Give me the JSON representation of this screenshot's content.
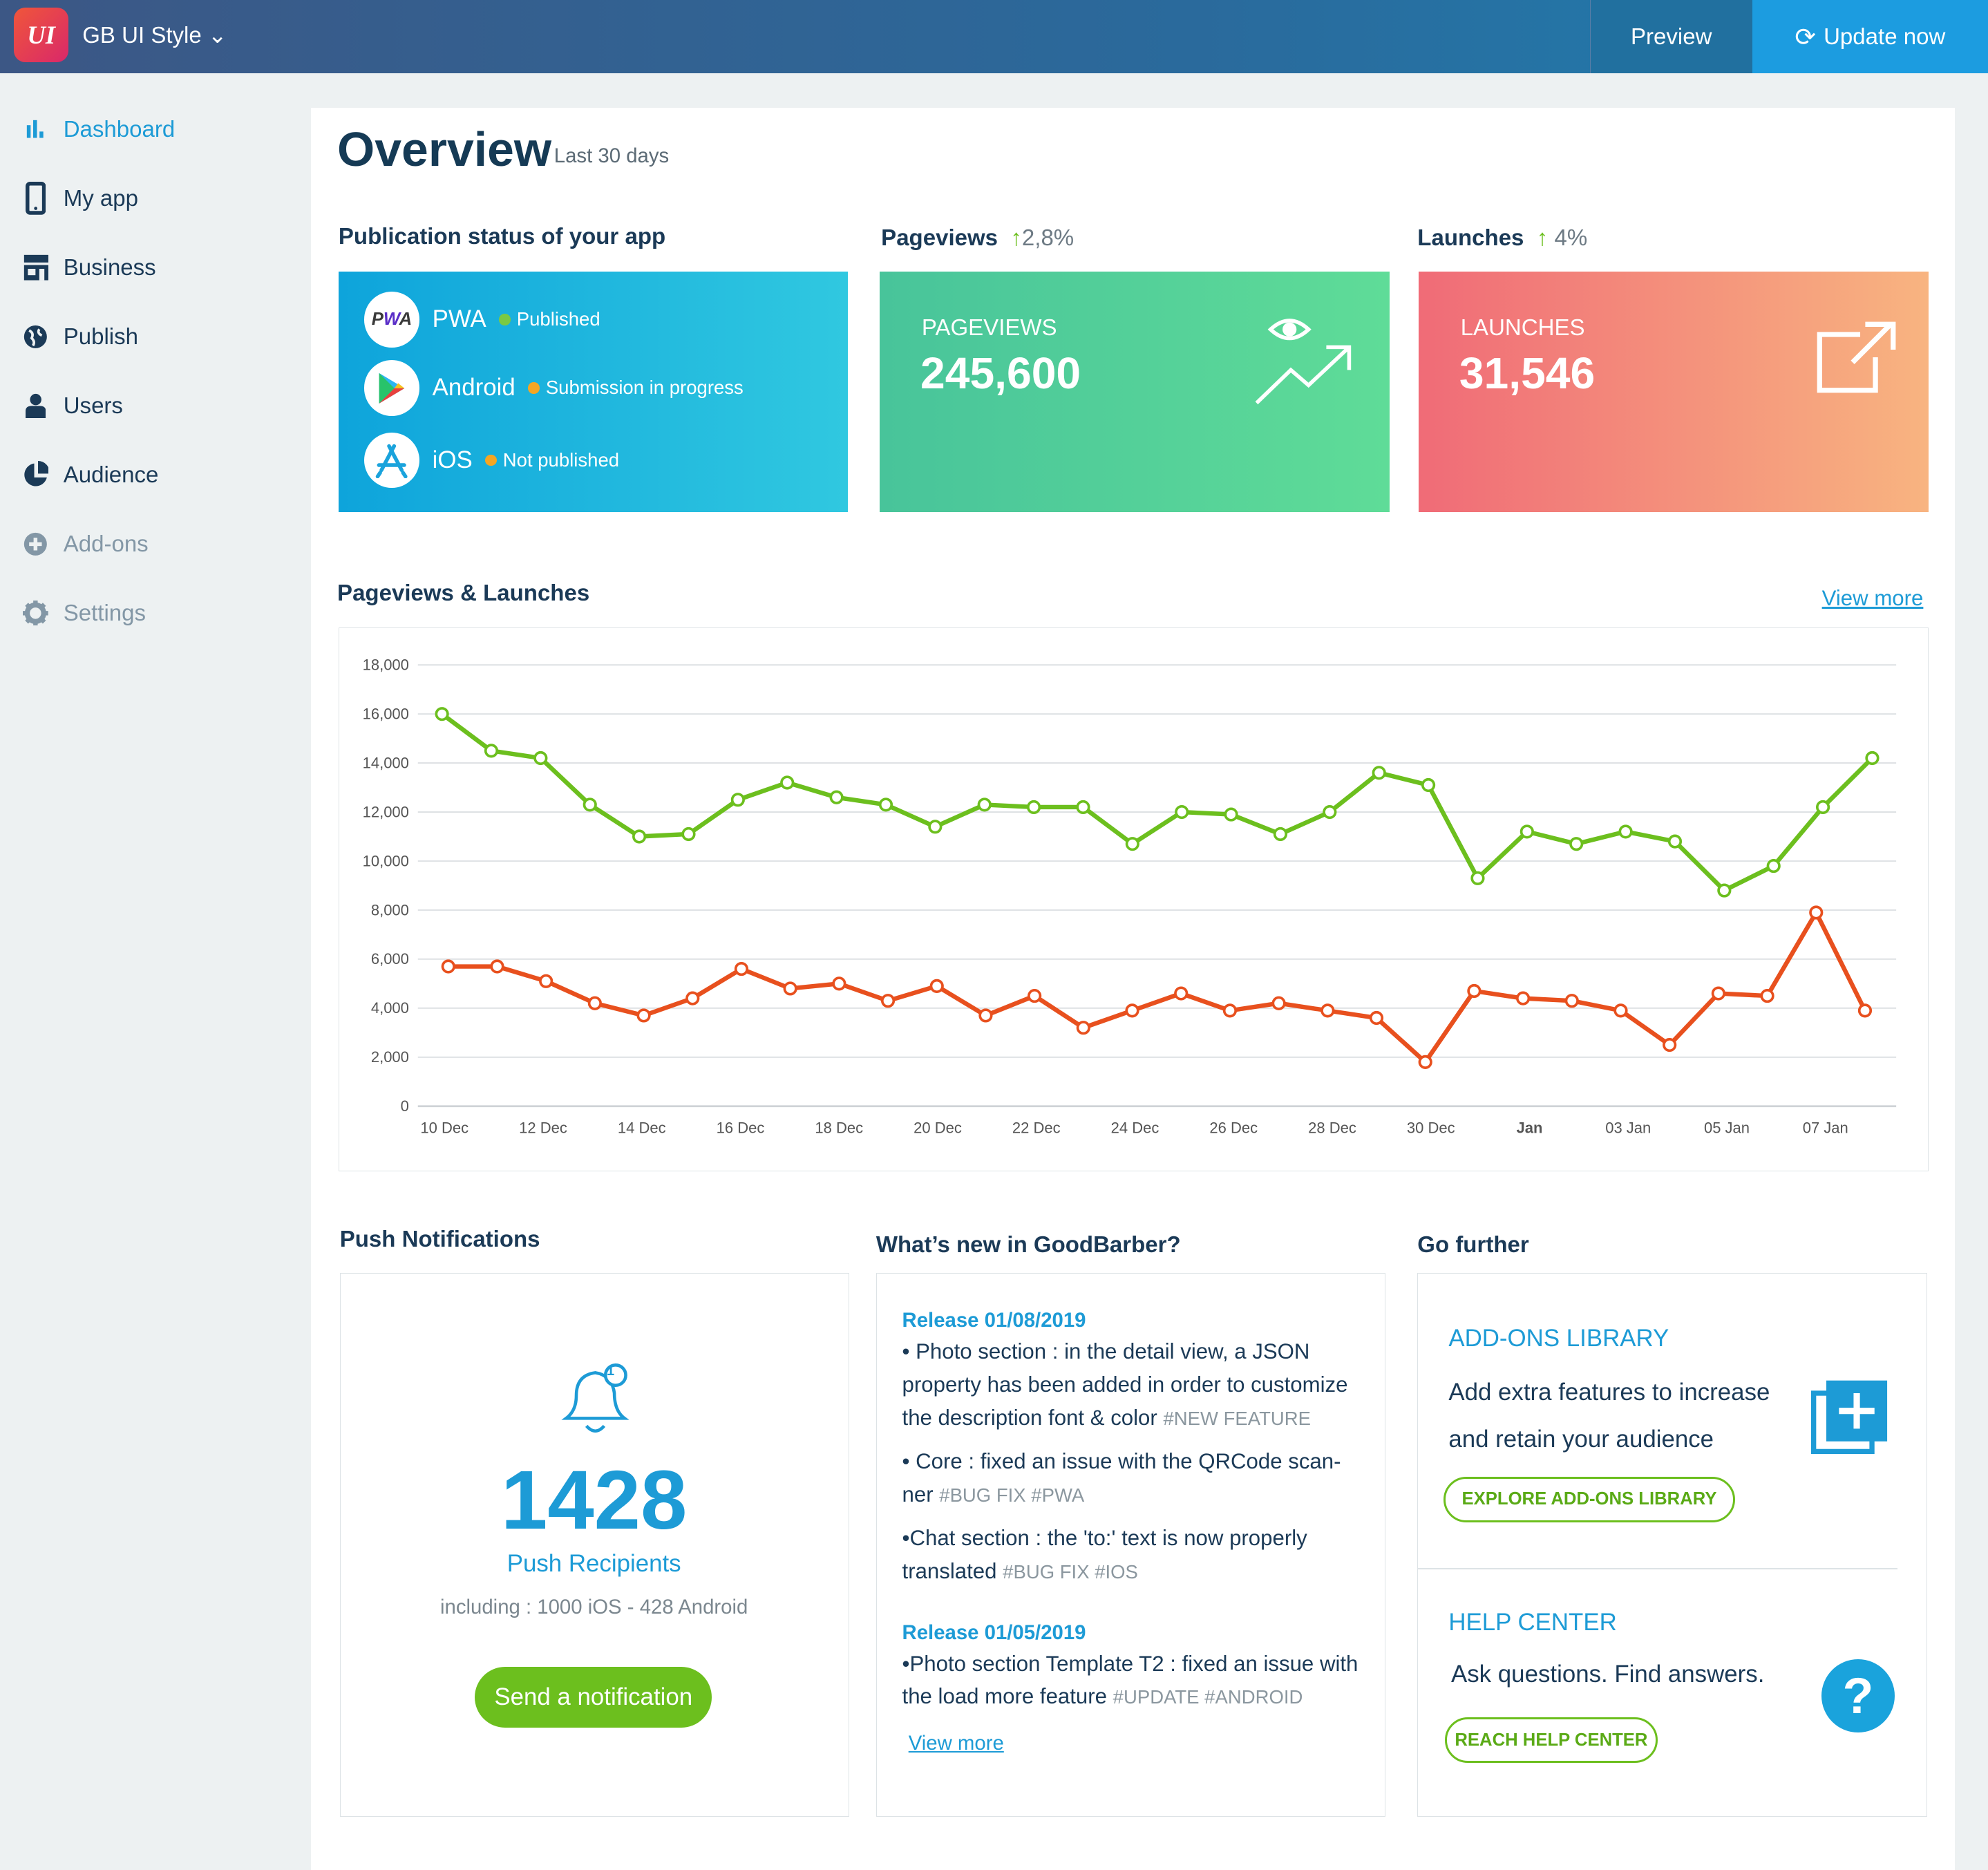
{
  "header": {
    "logo": "UI",
    "app_name": "GB UI Style",
    "preview": "Preview",
    "update": "Update now"
  },
  "sidebar": {
    "items": [
      {
        "label": "Dashboard",
        "icon": "bar-chart-icon",
        "state": "active"
      },
      {
        "label": "My app",
        "icon": "phone-icon"
      },
      {
        "label": "Business",
        "icon": "store-icon"
      },
      {
        "label": "Publish",
        "icon": "globe-icon"
      },
      {
        "label": "Users",
        "icon": "user-icon"
      },
      {
        "label": "Audience",
        "icon": "pie-chart-icon"
      },
      {
        "label": "Add-ons",
        "icon": "plus-circle-icon",
        "state": "dim"
      },
      {
        "label": "Settings",
        "icon": "gear-icon",
        "state": "dim"
      }
    ]
  },
  "overview": {
    "title": "Overview",
    "period": "Last 30 days"
  },
  "publication": {
    "heading": "Publication status of your app",
    "platforms": [
      {
        "name": "PWA",
        "status": "Published",
        "status_color": "#7ac943"
      },
      {
        "name": "Android",
        "status": "Submission in progress",
        "status_color": "#f5a623"
      },
      {
        "name": "iOS",
        "status": "Not published",
        "status_color": "#f5a623"
      }
    ]
  },
  "pageviews": {
    "heading": "Pageviews",
    "change": "2,8%",
    "label": "PAGEVIEWS",
    "value": "245,600"
  },
  "launches": {
    "heading": "Launches",
    "change": "4%",
    "label": "LAUNCHES",
    "value": "31,546"
  },
  "chart_section": {
    "heading": "Pageviews & Launches",
    "view_more": "View more"
  },
  "chart_data": {
    "type": "line",
    "ylim": [
      0,
      18000
    ],
    "grid": true,
    "yticks": [
      "0",
      "2,000",
      "4,000",
      "6,000",
      "8,000",
      "10,000",
      "12,000",
      "14,000",
      "16,000",
      "18,000"
    ],
    "x": [
      "10 Dec",
      "11 Dec",
      "12 Dec",
      "13 Dec",
      "14 Dec",
      "15 Dec",
      "16 Dec",
      "17 Dec",
      "18 Dec",
      "19 Dec",
      "20 Dec",
      "21 Dec",
      "22 Dec",
      "23 Dec",
      "24 Dec",
      "25 Dec",
      "26 Dec",
      "27 Dec",
      "28 Dec",
      "29 Dec",
      "30 Dec",
      "31 Dec",
      "01 Jan",
      "02 Jan",
      "03 Jan",
      "04 Jan",
      "05 Jan",
      "06 Jan",
      "07 Jan",
      "08 Jan"
    ],
    "xticks": [
      {
        "label": "10 Dec",
        "at": "10 Dec"
      },
      {
        "label": "12 Dec",
        "at": "12 Dec"
      },
      {
        "label": "14 Dec",
        "at": "14 Dec"
      },
      {
        "label": "16 Dec",
        "at": "16 Dec"
      },
      {
        "label": "18 Dec",
        "at": "18 Dec"
      },
      {
        "label": "20 Dec",
        "at": "20 Dec"
      },
      {
        "label": "22 Dec",
        "at": "22 Dec"
      },
      {
        "label": "24 Dec",
        "at": "24 Dec"
      },
      {
        "label": "26 Dec",
        "at": "26 Dec"
      },
      {
        "label": "28 Dec",
        "at": "28 Dec"
      },
      {
        "label": "30 Dec",
        "at": "30 Dec"
      },
      {
        "label": "Jan",
        "at": "01 Jan",
        "bold": true
      },
      {
        "label": "03 Jan",
        "at": "03 Jan"
      },
      {
        "label": "05 Jan",
        "at": "05 Jan"
      },
      {
        "label": "07 Jan",
        "at": "07 Jan"
      }
    ],
    "series": [
      {
        "color": "#6cbf1e",
        "values": [
          16000,
          14500,
          14200,
          12300,
          11000,
          11100,
          12500,
          13200,
          12600,
          12300,
          11400,
          12300,
          12200,
          12200,
          10700,
          12000,
          11900,
          11100,
          12000,
          13600,
          13100,
          9300,
          11200,
          10700,
          11200,
          10800,
          8800,
          9800,
          12200,
          14200
        ]
      },
      {
        "color": "#e8501e",
        "values": [
          5700,
          5700,
          5100,
          4200,
          3700,
          4400,
          5600,
          4800,
          5000,
          4300,
          4900,
          3700,
          4500,
          3200,
          3900,
          4600,
          3900,
          4200,
          3900,
          3600,
          1800,
          4700,
          4400,
          4300,
          3900,
          2500,
          4600,
          4500,
          7900,
          3900
        ]
      }
    ]
  },
  "push": {
    "heading": "Push Notifications",
    "count": "1428",
    "badge": "1",
    "label": "Push Recipients",
    "detail": "including : 1000 iOS - 428 Android",
    "button": "Send a notification"
  },
  "news": {
    "heading": "What’s new in GoodBarber?",
    "releases": [
      {
        "title": "Release 01/08/2019",
        "items": [
          {
            "text": "• Photo section : in the detail view, a JSON property has been added in order to customize the description font & color",
            "tags": "#NEW FEATURE"
          },
          {
            "text": "• Core : fixed an issue with the QRCode scan-ner",
            "tags": "#BUG FIX #PWA"
          },
          {
            "text": "•Chat section : the 'to:' text is now properly translated",
            "tags": "#BUG FIX #IOS"
          }
        ]
      },
      {
        "title": "Release 01/05/2019",
        "items": [
          {
            "text": "•Photo section Template T2 : fixed an issue with the load more feature",
            "tags": "#UPDATE #ANDROID"
          }
        ]
      }
    ],
    "view_more": "View more"
  },
  "further": {
    "heading": "Go further",
    "addons": {
      "title": "ADD-ONS LIBRARY",
      "text": "Add extra features to increase and retain your audience",
      "button": "EXPLORE ADD-ONS LIBRARY"
    },
    "help": {
      "title": "HELP CENTER",
      "text": "Ask questions. Find answers.",
      "button": "REACH HELP CENTER"
    }
  }
}
